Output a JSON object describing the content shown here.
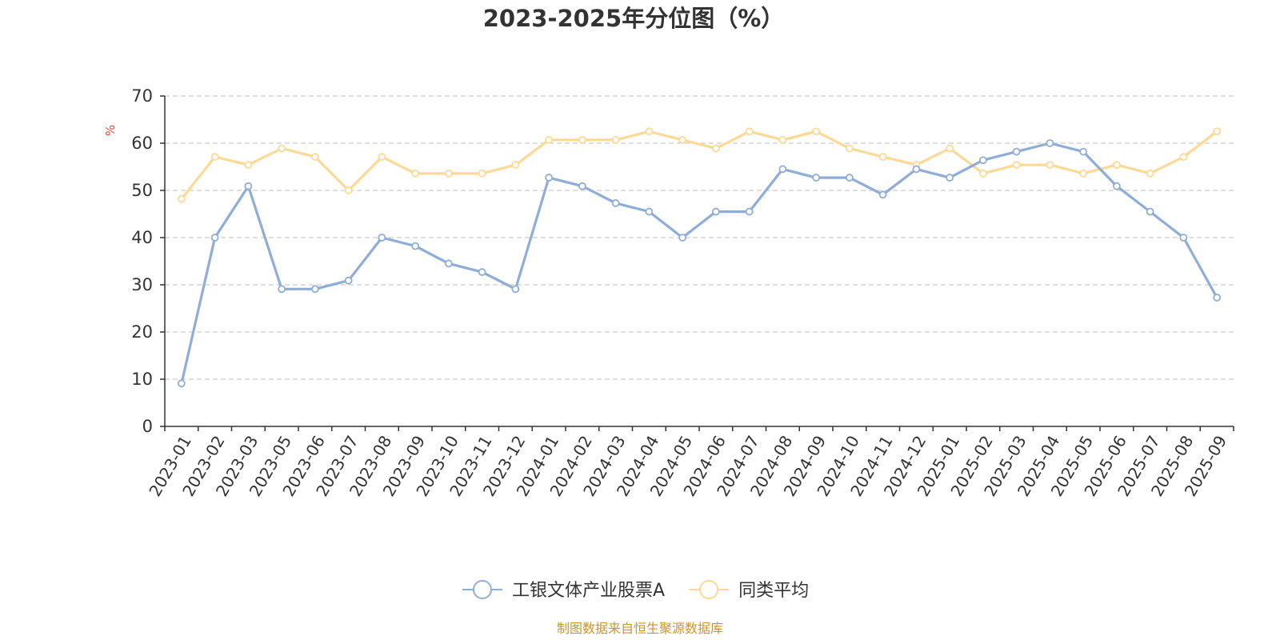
{
  "colors": {
    "series_a": "#8eadd9",
    "series_b": "#fdd995",
    "unit": "#e8453c",
    "source": "#c8962e",
    "grid": "#cccccc",
    "axis": "#333333"
  },
  "source_note": "制图数据来自恒生聚源数据库",
  "chart_data": {
    "type": "line",
    "title": "2023-2025年分位图（%）",
    "ylabel": "%",
    "ylim": [
      0,
      70
    ],
    "yticks": [
      0,
      10,
      20,
      30,
      40,
      50,
      60,
      70
    ],
    "grid": true,
    "legend": "bottom-center",
    "categories": [
      "2023-01",
      "2023-02",
      "2023-03",
      "2023-05",
      "2023-06",
      "2023-07",
      "2023-08",
      "2023-09",
      "2023-10",
      "2023-11",
      "2023-12",
      "2024-01",
      "2024-02",
      "2024-03",
      "2024-04",
      "2024-05",
      "2024-06",
      "2024-07",
      "2024-08",
      "2024-09",
      "2024-10",
      "2024-11",
      "2024-12",
      "2025-01",
      "2025-02",
      "2025-03",
      "2025-04",
      "2025-05",
      "2025-06",
      "2025-07",
      "2025-08",
      "2025-09"
    ],
    "series": [
      {
        "name": "工银文体产业股票A",
        "color": "#8eadd9",
        "values": [
          9.1,
          40.0,
          50.9,
          29.1,
          29.1,
          30.9,
          40.0,
          38.2,
          34.5,
          32.7,
          29.1,
          52.7,
          50.9,
          47.3,
          45.5,
          40.0,
          45.5,
          45.5,
          54.5,
          52.7,
          52.7,
          49.1,
          54.5,
          52.7,
          56.4,
          58.2,
          60.0,
          58.2,
          50.9,
          45.5,
          40.0,
          27.3
        ]
      },
      {
        "name": "同类平均",
        "color": "#fdd995",
        "values": [
          48.2,
          57.1,
          55.4,
          58.9,
          57.1,
          50.0,
          57.1,
          53.6,
          53.6,
          53.6,
          55.4,
          60.7,
          60.7,
          60.7,
          62.5,
          60.7,
          58.9,
          62.5,
          60.7,
          62.5,
          58.9,
          57.1,
          55.4,
          58.9,
          53.6,
          55.4,
          55.4,
          53.6,
          55.4,
          53.6,
          57.1,
          62.5
        ]
      }
    ]
  }
}
